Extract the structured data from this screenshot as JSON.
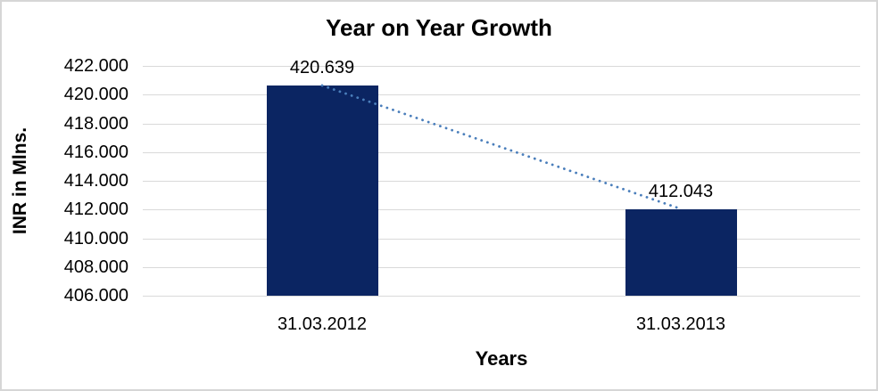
{
  "window": {
    "background": "#ffffff",
    "border_color": "#d6d6d6"
  },
  "chart_data": {
    "type": "bar",
    "title": "Year on Year Growth",
    "xlabel": "Years",
    "ylabel": "INR in Mlns.",
    "categories": [
      "31.03.2012",
      "31.03.2013"
    ],
    "series": [
      {
        "name": "INR in Mlns.",
        "values": [
          420.639,
          412.043
        ]
      }
    ],
    "data_labels": [
      "420.639",
      "412.043"
    ],
    "ylim": [
      406,
      422
    ],
    "ytick_step": 2,
    "ytick_labels": [
      "422.000",
      "420.000",
      "418.000",
      "416.000",
      "414.000",
      "412.000",
      "410.000",
      "408.000",
      "406.000"
    ],
    "grid": true,
    "legend": false,
    "bar_color": "#0b2562",
    "gridline_color": "#d9d9d9",
    "trendline": {
      "style": "dotted",
      "color": "#4a7ebb",
      "connects": [
        "31.03.2012",
        "31.03.2013"
      ]
    }
  }
}
